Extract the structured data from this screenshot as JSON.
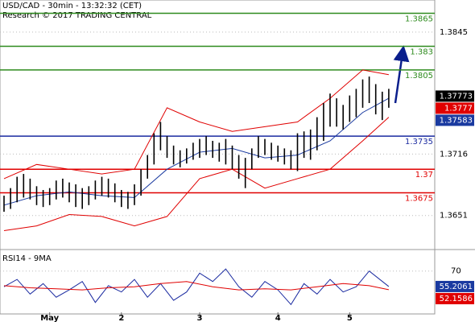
{
  "header": {
    "title": "USD/CAD - 30min - 13:32:32 (CET)",
    "subtitle": "Research © 2017 TRADING CENTRAL"
  },
  "chart_data": [
    {
      "type": "ohlc",
      "ylim": [
        1.3615,
        1.3879
      ],
      "yticks": [
        1.3845,
        1.3716,
        1.3651
      ],
      "grid": true,
      "color": "#000000",
      "xticks": [
        {
          "value": 7,
          "label": "May"
        },
        {
          "value": 18,
          "label": "2"
        },
        {
          "value": 30,
          "label": "3"
        },
        {
          "value": 42,
          "label": "4"
        },
        {
          "value": 53,
          "label": "5"
        }
      ],
      "low": [
        1.3655,
        1.3658,
        1.3665,
        1.367,
        1.3668,
        1.3662,
        1.366,
        1.3662,
        1.3668,
        1.367,
        1.3665,
        1.366,
        1.3658,
        1.3662,
        1.3668,
        1.3672,
        1.367,
        1.3665,
        1.366,
        1.3658,
        1.3662,
        1.3672,
        1.369,
        1.3705,
        1.372,
        1.3712,
        1.3705,
        1.3702,
        1.3706,
        1.371,
        1.3712,
        1.3715,
        1.3712,
        1.3708,
        1.3705,
        1.37,
        1.369,
        1.368,
        1.37,
        1.3712,
        1.3715,
        1.371,
        1.3708,
        1.3705,
        1.37,
        1.3698,
        1.3712,
        1.371,
        1.372,
        1.373,
        1.3745,
        1.3745,
        1.3742,
        1.375,
        1.3755,
        1.3765,
        1.377,
        1.3758,
        1.3752,
        1.3765
      ],
      "high": [
        1.3672,
        1.368,
        1.3692,
        1.3695,
        1.369,
        1.3682,
        1.3678,
        1.368,
        1.3688,
        1.369,
        1.3686,
        1.3684,
        1.368,
        1.3682,
        1.3688,
        1.3692,
        1.369,
        1.3685,
        1.3678,
        1.3676,
        1.3684,
        1.37,
        1.3715,
        1.3738,
        1.375,
        1.3735,
        1.3725,
        1.372,
        1.3722,
        1.3728,
        1.3732,
        1.3735,
        1.373,
        1.3728,
        1.3732,
        1.3725,
        1.3715,
        1.3712,
        1.3722,
        1.3735,
        1.3732,
        1.3728,
        1.3725,
        1.3722,
        1.372,
        1.3738,
        1.374,
        1.3742,
        1.3755,
        1.377,
        1.378,
        1.3775,
        1.3768,
        1.3778,
        1.3785,
        1.3795,
        1.3798,
        1.379,
        1.3782,
        1.3785
      ],
      "bands": [
        {
          "color": "#e00000",
          "x": [
            0,
            5,
            10,
            15,
            20,
            25,
            30,
            35,
            40,
            45,
            50,
            55,
            59
          ],
          "values": [
            1.369,
            1.3705,
            1.37,
            1.3695,
            1.37,
            1.3765,
            1.375,
            1.374,
            1.3745,
            1.375,
            1.3775,
            1.3805,
            1.38
          ]
        },
        {
          "color": "#e00000",
          "x": [
            0,
            5,
            10,
            15,
            20,
            25,
            30,
            35,
            40,
            45,
            50,
            55,
            59
          ],
          "values": [
            1.3635,
            1.364,
            1.3652,
            1.365,
            1.364,
            1.365,
            1.369,
            1.37,
            1.368,
            1.369,
            1.37,
            1.373,
            1.3755
          ]
        },
        {
          "color": "#1a3aa0",
          "x": [
            0,
            5,
            10,
            15,
            20,
            25,
            30,
            35,
            40,
            45,
            50,
            55,
            59
          ],
          "values": [
            1.3662,
            1.3672,
            1.3676,
            1.3672,
            1.367,
            1.37,
            1.3718,
            1.3722,
            1.3712,
            1.3715,
            1.373,
            1.376,
            1.3775
          ]
        }
      ],
      "reference_lines": [
        1.3865,
        1.383,
        1.3805,
        1.3735,
        1.37,
        1.3675
      ],
      "reference_colors": [
        "#2e8b1e",
        "#2e8b1e",
        "#2e8b1e",
        "#1a2aa0",
        "#e00000",
        "#e00000"
      ],
      "price_tags": [
        {
          "value": 1.37773,
          "color": "#000000"
        },
        {
          "value": 1.3777,
          "color": "#e00000"
        },
        {
          "value": 1.37583,
          "color": "#1a3aa0"
        }
      ]
    },
    {
      "type": "line",
      "title": "RSI14 - 9MA",
      "ylim": [
        29,
        89
      ],
      "yticks": [
        70
      ],
      "grid": true,
      "series": [
        {
          "color": "#1a2aa0",
          "x": [
            0,
            2,
            4,
            6,
            8,
            10,
            12,
            14,
            16,
            18,
            20,
            22,
            24,
            26,
            28,
            30,
            32,
            34,
            36,
            38,
            40,
            42,
            44,
            46,
            48,
            50,
            52,
            54,
            56,
            59
          ],
          "values": [
            55,
            62,
            48,
            58,
            45,
            52,
            60,
            40,
            56,
            50,
            62,
            45,
            58,
            42,
            50,
            68,
            60,
            72,
            55,
            45,
            60,
            52,
            38,
            58,
            48,
            62,
            50,
            55,
            70,
            55.2061
          ]
        },
        {
          "color": "#e00000",
          "x": [
            0,
            4,
            8,
            12,
            16,
            20,
            24,
            28,
            32,
            36,
            40,
            44,
            48,
            52,
            56,
            59
          ],
          "values": [
            56,
            54,
            53,
            52,
            54,
            55,
            58,
            60,
            55,
            52,
            53,
            52,
            55,
            58,
            56,
            52.1586
          ]
        }
      ],
      "value_tags": [
        {
          "value": 55.2061,
          "color": "#1a3aa0"
        },
        {
          "value": 52.1586,
          "color": "#e00000"
        }
      ]
    }
  ]
}
